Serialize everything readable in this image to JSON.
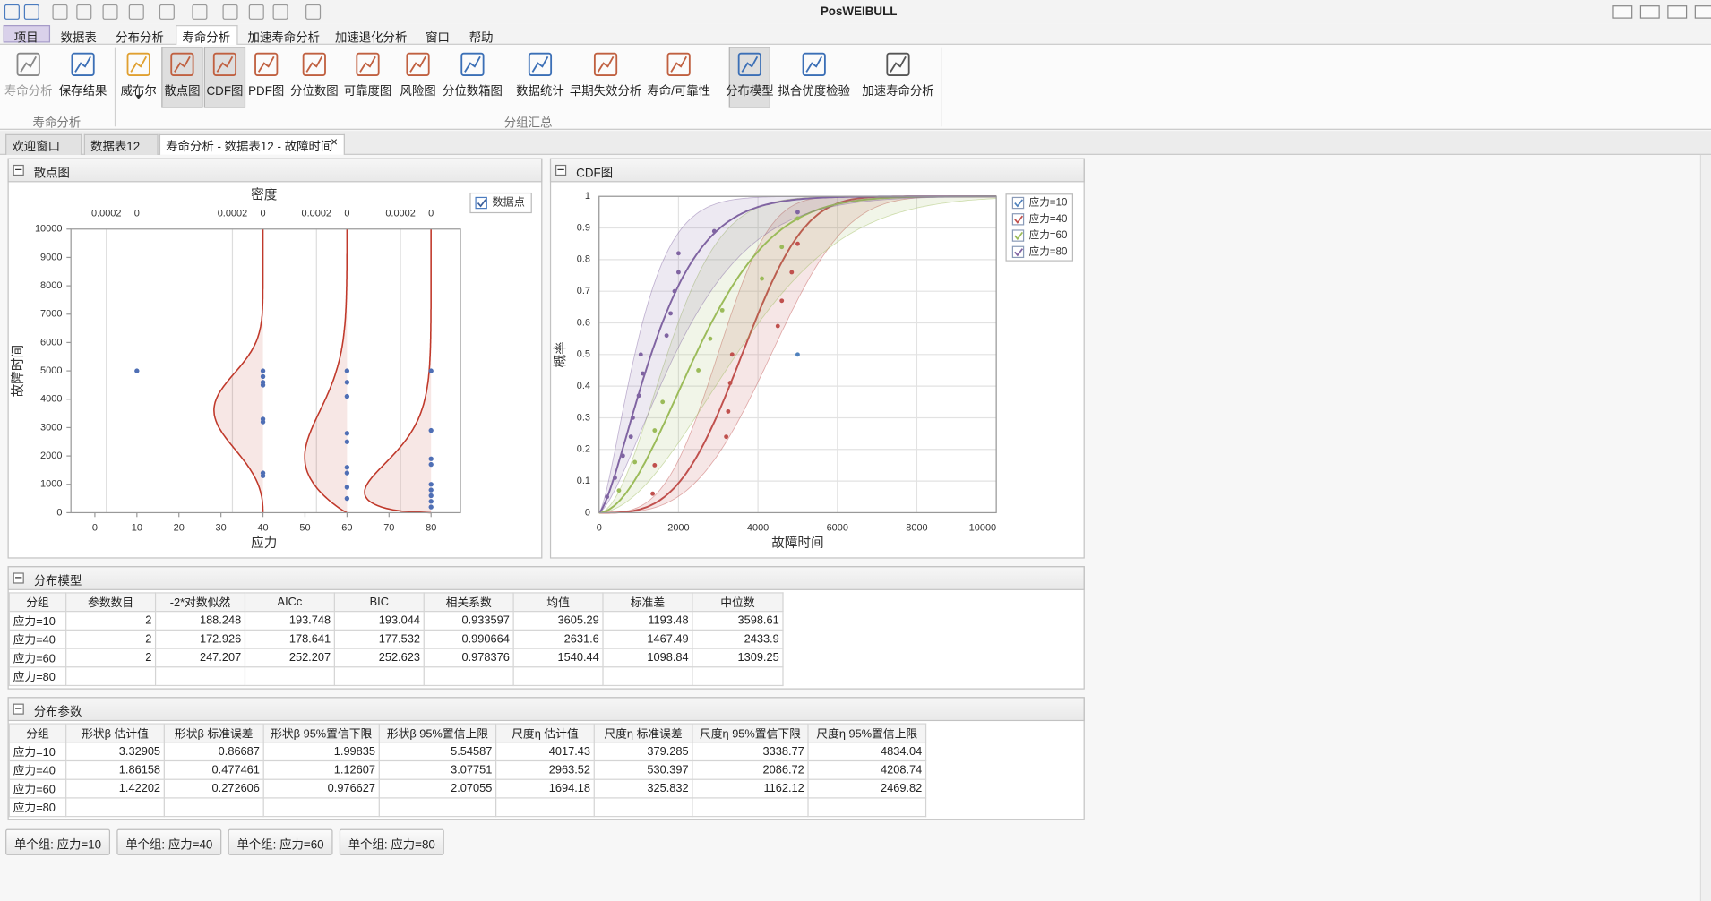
{
  "app": {
    "title": "PosWEIBULL"
  },
  "menu": [
    "项目",
    "数据表",
    "分布分析",
    "寿命分析",
    "加速寿命分析",
    "加速退化分析",
    "窗口",
    "帮助"
  ],
  "ribbon": {
    "buttons": [
      "寿命分析",
      "保存结果",
      "威布尔",
      "散点图",
      "CDF图",
      "PDF图",
      "分位数图",
      "可靠度图",
      "风险图",
      "分位数箱图",
      "数据统计",
      "早期失效分析",
      "寿命/可靠性",
      "分布模型",
      "拟合优度检验",
      "加速寿命分析"
    ],
    "groups": [
      "寿命分析",
      "分组汇总"
    ]
  },
  "doc_tabs": [
    "欢迎窗口",
    "数据表12",
    "寿命分析 - 数据表12 - 故障时间"
  ],
  "scatter_panel": {
    "header": "散点图",
    "chart_data": {
      "type": "scatter",
      "title": "密度",
      "x_label": "应力",
      "y_label": "故障时间",
      "legend": "数据点",
      "color": "#4f6fb5",
      "curve_color": "#c0392b",
      "xlim": [
        -5.7,
        87
      ],
      "xticks": [
        0,
        10,
        20,
        30,
        40,
        50,
        60,
        70,
        80
      ],
      "ylim": [
        0,
        10000
      ],
      "yticks": [
        0,
        1000,
        2000,
        3000,
        4000,
        5000,
        6000,
        7000,
        8000,
        9000,
        10000
      ],
      "density_ticks": [
        0.0002,
        0
      ],
      "density_positions": [
        10,
        40,
        60,
        80
      ],
      "series": [
        {
          "x": 10,
          "values": [
            5000
          ]
        },
        {
          "x": 40,
          "values": [
            1300,
            1400,
            3200,
            3300,
            4500,
            4600,
            4800,
            5000
          ]
        },
        {
          "x": 60,
          "values": [
            500,
            900,
            1400,
            1600,
            2500,
            2800,
            4100,
            4600,
            5000
          ]
        },
        {
          "x": 80,
          "values": [
            200,
            400,
            600,
            800,
            1000,
            1700,
            1900,
            2900,
            5000
          ]
        }
      ]
    }
  },
  "cdf_panel": {
    "header": "CDF图",
    "chart_data": {
      "type": "line",
      "x_label": "故障时间",
      "y_label": "概率",
      "grid": true,
      "legend": "upper right",
      "xlim": [
        0,
        10000
      ],
      "xticks": [
        0,
        2000,
        4000,
        6000,
        8000,
        10000
      ],
      "ylim": [
        0,
        1
      ],
      "yticks": [
        0,
        0.1,
        0.2,
        0.3,
        0.4,
        0.5,
        0.6,
        0.7,
        0.8,
        0.9,
        1
      ],
      "series": [
        {
          "name": "应力=10",
          "color": "#4f81bd",
          "points": [
            [
              5000,
              0.5
            ]
          ]
        },
        {
          "name": "应力=40",
          "color": "#c0504d",
          "points": [
            [
              1350,
              0.06
            ],
            [
              1400,
              0.15
            ],
            [
              3200,
              0.24
            ],
            [
              3250,
              0.32
            ],
            [
              3300,
              0.41
            ],
            [
              3350,
              0.5
            ],
            [
              4500,
              0.59
            ],
            [
              4600,
              0.67
            ],
            [
              4850,
              0.76
            ],
            [
              5000,
              0.85
            ]
          ]
        },
        {
          "name": "应力=60",
          "color": "#9bbb59",
          "points": [
            [
              500,
              0.07
            ],
            [
              900,
              0.16
            ],
            [
              1400,
              0.26
            ],
            [
              1600,
              0.35
            ],
            [
              2500,
              0.45
            ],
            [
              2800,
              0.55
            ],
            [
              3100,
              0.64
            ],
            [
              4100,
              0.74
            ],
            [
              4600,
              0.84
            ],
            [
              5000,
              0.93
            ]
          ]
        },
        {
          "name": "应力=80",
          "color": "#8064a2",
          "points": [
            [
              200,
              0.05
            ],
            [
              400,
              0.11
            ],
            [
              600,
              0.18
            ],
            [
              800,
              0.24
            ],
            [
              850,
              0.3
            ],
            [
              1000,
              0.37
            ],
            [
              1100,
              0.44
            ],
            [
              1050,
              0.5
            ],
            [
              1700,
              0.56
            ],
            [
              1800,
              0.63
            ],
            [
              1900,
              0.7
            ],
            [
              2000,
              0.76
            ],
            [
              2000,
              0.82
            ],
            [
              2900,
              0.89
            ],
            [
              5000,
              0.95
            ]
          ]
        }
      ]
    }
  },
  "model_table": {
    "header": "分布模型",
    "columns": [
      "分组",
      "参数数目",
      "-2*对数似然",
      "AICc",
      "BIC",
      "相关系数",
      "均值",
      "标准差",
      "中位数"
    ],
    "rows": [
      [
        "应力=10",
        2,
        188.248,
        193.748,
        193.044,
        0.933597,
        3605.29,
        1193.48,
        3598.61
      ],
      [
        "应力=40",
        2,
        172.926,
        178.641,
        177.532,
        0.990664,
        2631.6,
        1467.49,
        2433.9
      ],
      [
        "应力=60",
        2,
        247.207,
        252.207,
        252.623,
        0.978376,
        1540.44,
        1098.84,
        1309.25
      ],
      [
        "应力=80"
      ]
    ]
  },
  "param_table": {
    "header": "分布参数",
    "columns": [
      "分组",
      "形状β 估计值",
      "形状β 标准误差",
      "形状β 95%置信下限",
      "形状β 95%置信上限",
      "尺度η 估计值",
      "尺度η 标准误差",
      "尺度η 95%置信下限",
      "尺度η 95%置信上限"
    ],
    "rows": [
      [
        "应力=10",
        3.32905,
        0.86687,
        1.99835,
        5.54587,
        4017.43,
        379.285,
        3338.77,
        4834.04
      ],
      [
        "应力=40",
        1.86158,
        0.477461,
        1.12607,
        3.07751,
        2963.52,
        530.397,
        2086.72,
        4208.74
      ],
      [
        "应力=60",
        1.42202,
        0.272606,
        0.976627,
        2.07055,
        1694.18,
        325.832,
        1162.12,
        2469.82
      ],
      [
        "应力=80"
      ]
    ]
  },
  "group_buttons": [
    "单个组: 应力=10",
    "单个组: 应力=40",
    "单个组: 应力=60",
    "单个组: 应力=80"
  ]
}
